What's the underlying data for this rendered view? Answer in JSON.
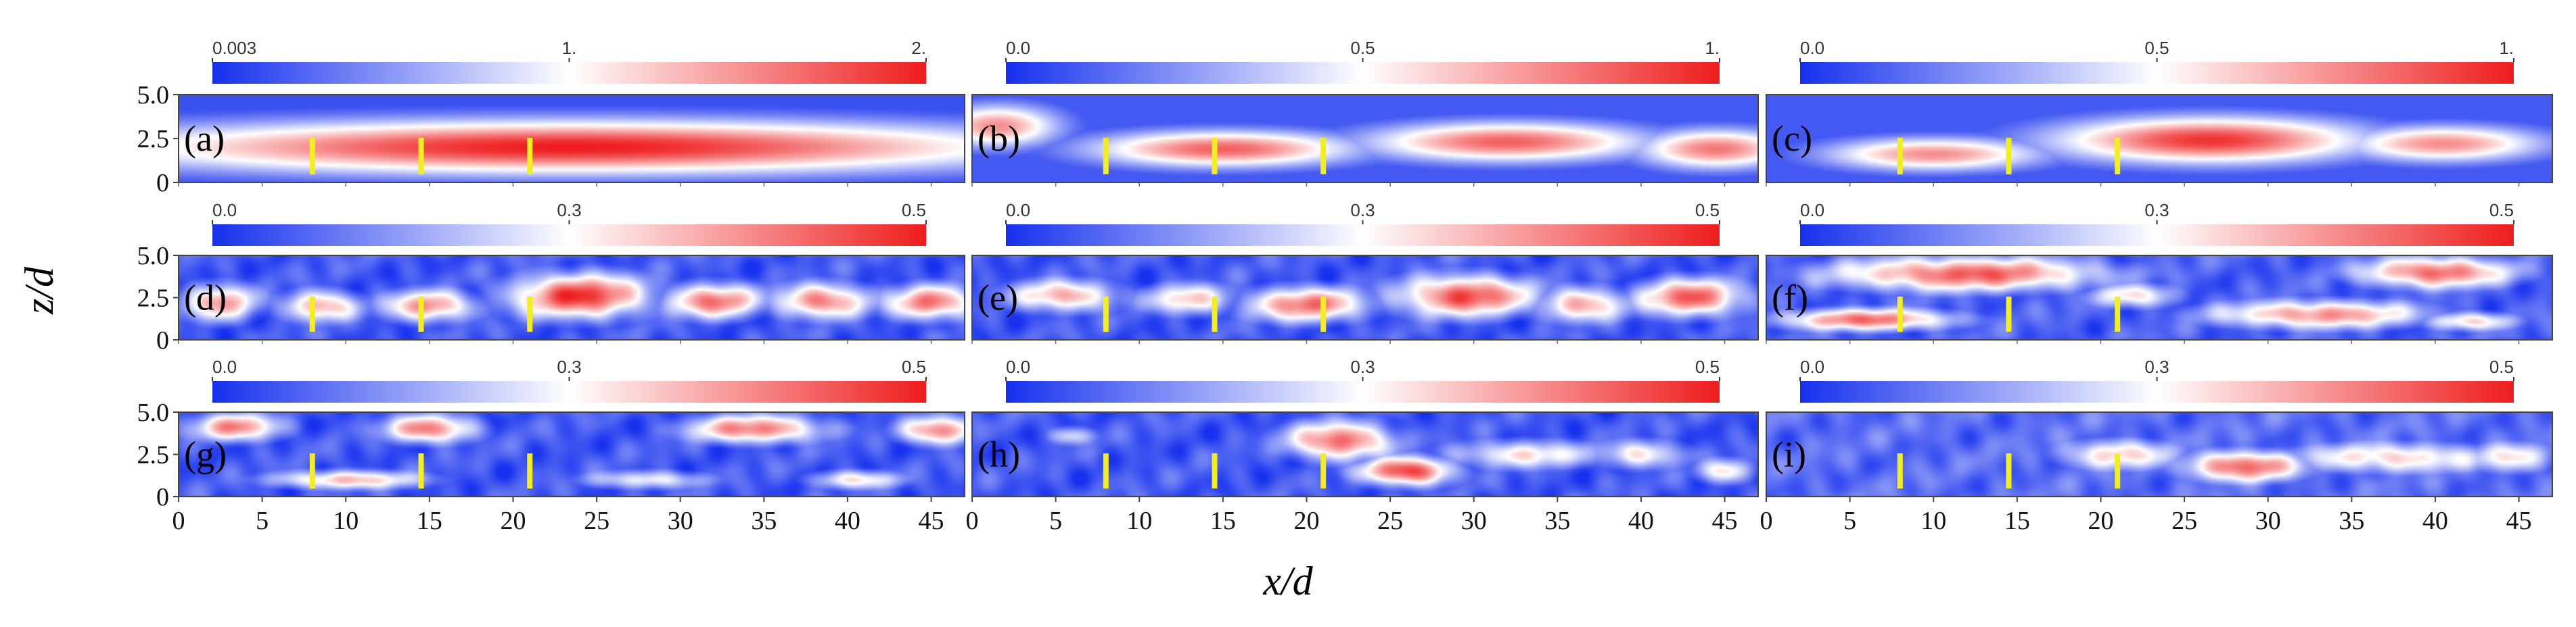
{
  "chart_data": {
    "type": "heatmap",
    "title": "",
    "xlabel": "x/d",
    "ylabel": "z/d",
    "xlim": [
      0,
      47
    ],
    "ylim": [
      0,
      5
    ],
    "x_ticks": [
      "0",
      "5",
      "10",
      "15",
      "20",
      "25",
      "30",
      "35",
      "40",
      "45"
    ],
    "y_ticks": [
      "5.0",
      "2.5",
      "0"
    ],
    "marker_x": [
      8,
      14.5,
      21
    ],
    "marker_color": "#f2ee20",
    "colormap": {
      "low": "#1530ee",
      "mid": "#ffffff",
      "high": "#ee1c1c"
    },
    "panels": [
      {
        "label": "(a)",
        "colorbar": [
          "0.003",
          "1.",
          "2."
        ],
        "range": [
          0.003,
          2
        ],
        "field": {
          "bg": 0.08,
          "blobs": [
            {
              "x": 23.5,
              "z": 2.0,
              "rx": 30,
              "rz": 1.6,
              "v": 1.0
            }
          ]
        }
      },
      {
        "label": "(b)",
        "colorbar": [
          "0.0",
          "0.5",
          "1."
        ],
        "range": [
          0,
          1
        ],
        "field": {
          "bg": 0.1,
          "blobs": [
            {
              "x": 1.5,
              "z": 3.2,
              "rx": 4,
              "rz": 1.3,
              "v": 0.75
            },
            {
              "x": 15,
              "z": 1.9,
              "rx": 8.5,
              "rz": 1.1,
              "v": 0.85
            },
            {
              "x": 32,
              "z": 2.3,
              "rx": 9,
              "rz": 1.2,
              "v": 0.85
            },
            {
              "x": 44.5,
              "z": 1.9,
              "rx": 5,
              "rz": 1.2,
              "v": 0.8
            }
          ]
        }
      },
      {
        "label": "(c)",
        "colorbar": [
          "0.0",
          "0.5",
          "1."
        ],
        "range": [
          0,
          1
        ],
        "field": {
          "bg": 0.1,
          "blobs": [
            {
              "x": 10,
              "z": 1.6,
              "rx": 7,
              "rz": 1.0,
              "v": 0.75
            },
            {
              "x": 26.5,
              "z": 2.4,
              "rx": 10,
              "rz": 1.4,
              "v": 0.95
            },
            {
              "x": 40.5,
              "z": 2.2,
              "rx": 6.5,
              "rz": 1.1,
              "v": 0.75
            }
          ]
        }
      },
      {
        "label": "(d)",
        "colorbar": [
          "0.0",
          "0.3",
          "0.5"
        ],
        "range": [
          0,
          0.5
        ],
        "field": {
          "bg": 0.1,
          "blobs": [
            {
              "x": 2.5,
              "z": 2.2,
              "rx": 2.5,
              "rz": 1.2,
              "v": 0.7
            },
            {
              "x": 8.5,
              "z": 2.0,
              "rx": 2.6,
              "rz": 1.0,
              "v": 0.7
            },
            {
              "x": 15,
              "z": 2.0,
              "rx": 3,
              "rz": 1.0,
              "v": 0.75
            },
            {
              "x": 24,
              "z": 2.6,
              "rx": 4.5,
              "rz": 1.4,
              "v": 0.95
            },
            {
              "x": 32,
              "z": 2.3,
              "rx": 3.2,
              "rz": 1.1,
              "v": 0.8
            },
            {
              "x": 38.5,
              "z": 2.3,
              "rx": 3.2,
              "rz": 1.1,
              "v": 0.8
            },
            {
              "x": 45,
              "z": 2.2,
              "rx": 3,
              "rz": 1.1,
              "v": 0.8
            }
          ]
        }
      },
      {
        "label": "(e)",
        "colorbar": [
          "0.0",
          "0.3",
          "0.5"
        ],
        "range": [
          0,
          0.5
        ],
        "field": {
          "bg": 0.1,
          "blobs": [
            {
              "x": 5.5,
              "z": 2.6,
              "rx": 3.5,
              "rz": 1.0,
              "v": 0.7
            },
            {
              "x": 13,
              "z": 2.4,
              "rx": 3,
              "rz": 1.0,
              "v": 0.6
            },
            {
              "x": 20,
              "z": 2.1,
              "rx": 4,
              "rz": 1.1,
              "v": 0.8
            },
            {
              "x": 29.5,
              "z": 2.6,
              "rx": 4.5,
              "rz": 1.3,
              "v": 0.9
            },
            {
              "x": 36.5,
              "z": 2.1,
              "rx": 3,
              "rz": 1.1,
              "v": 0.7
            },
            {
              "x": 43,
              "z": 2.5,
              "rx": 3.5,
              "rz": 1.2,
              "v": 0.85
            }
          ]
        }
      },
      {
        "label": "(f)",
        "colorbar": [
          "0.0",
          "0.3",
          "0.5"
        ],
        "range": [
          0,
          0.5
        ],
        "field": {
          "bg": 0.12,
          "blobs": [
            {
              "x": 12,
              "z": 3.9,
              "rx": 9,
              "rz": 1.1,
              "v": 0.85
            },
            {
              "x": 6,
              "z": 1.2,
              "rx": 6,
              "rz": 0.7,
              "v": 0.8
            },
            {
              "x": 22,
              "z": 2.6,
              "rx": 3,
              "rz": 0.8,
              "v": 0.55
            },
            {
              "x": 33,
              "z": 1.5,
              "rx": 7,
              "rz": 0.9,
              "v": 0.75
            },
            {
              "x": 40,
              "z": 4.0,
              "rx": 5,
              "rz": 1.0,
              "v": 0.85
            },
            {
              "x": 42,
              "z": 1.1,
              "rx": 3,
              "rz": 0.6,
              "v": 0.6
            }
          ]
        }
      },
      {
        "label": "(g)",
        "colorbar": [
          "0.0",
          "0.3",
          "0.5"
        ],
        "range": [
          0,
          0.5
        ],
        "field": {
          "bg": 0.1,
          "blobs": [
            {
              "x": 3.5,
              "z": 4.1,
              "rx": 3,
              "rz": 0.9,
              "v": 0.75
            },
            {
              "x": 15,
              "z": 4.0,
              "rx": 3,
              "rz": 0.9,
              "v": 0.8
            },
            {
              "x": 10,
              "z": 1.0,
              "rx": 5,
              "rz": 0.6,
              "v": 0.65
            },
            {
              "x": 28,
              "z": 1.0,
              "rx": 4,
              "rz": 0.6,
              "v": 0.5
            },
            {
              "x": 34.5,
              "z": 4.0,
              "rx": 4.5,
              "rz": 0.9,
              "v": 0.8
            },
            {
              "x": 40.5,
              "z": 1.0,
              "rx": 3,
              "rz": 0.6,
              "v": 0.55
            },
            {
              "x": 45.5,
              "z": 3.9,
              "rx": 2.5,
              "rz": 0.9,
              "v": 0.8
            }
          ]
        }
      },
      {
        "label": "(h)",
        "colorbar": [
          "0.0",
          "0.3",
          "0.5"
        ],
        "range": [
          0,
          0.5
        ],
        "field": {
          "bg": 0.1,
          "blobs": [
            {
              "x": 6,
              "z": 3.6,
              "rx": 1.5,
              "rz": 0.6,
              "v": 0.45
            },
            {
              "x": 22,
              "z": 3.3,
              "rx": 3.5,
              "rz": 1.2,
              "v": 0.85
            },
            {
              "x": 26,
              "z": 1.5,
              "rx": 3,
              "rz": 0.9,
              "v": 0.95
            },
            {
              "x": 33,
              "z": 2.5,
              "rx": 5,
              "rz": 0.9,
              "v": 0.55
            },
            {
              "x": 40,
              "z": 2.5,
              "rx": 3,
              "rz": 0.9,
              "v": 0.55
            },
            {
              "x": 45,
              "z": 1.5,
              "rx": 1.8,
              "rz": 0.8,
              "v": 0.55
            }
          ]
        }
      },
      {
        "label": "(i)",
        "colorbar": [
          "0.0",
          "0.3",
          "0.5"
        ],
        "range": [
          0,
          0.5
        ],
        "field": {
          "bg": 0.15,
          "blobs": [
            {
              "x": 21,
              "z": 2.5,
              "rx": 4,
              "rz": 1.0,
              "v": 0.6
            },
            {
              "x": 28.5,
              "z": 1.8,
              "rx": 4,
              "rz": 1.0,
              "v": 0.85
            },
            {
              "x": 37.5,
              "z": 2.3,
              "rx": 7,
              "rz": 1.0,
              "v": 0.6
            },
            {
              "x": 44.5,
              "z": 2.3,
              "rx": 3,
              "rz": 1.0,
              "v": 0.55
            }
          ]
        }
      }
    ]
  }
}
